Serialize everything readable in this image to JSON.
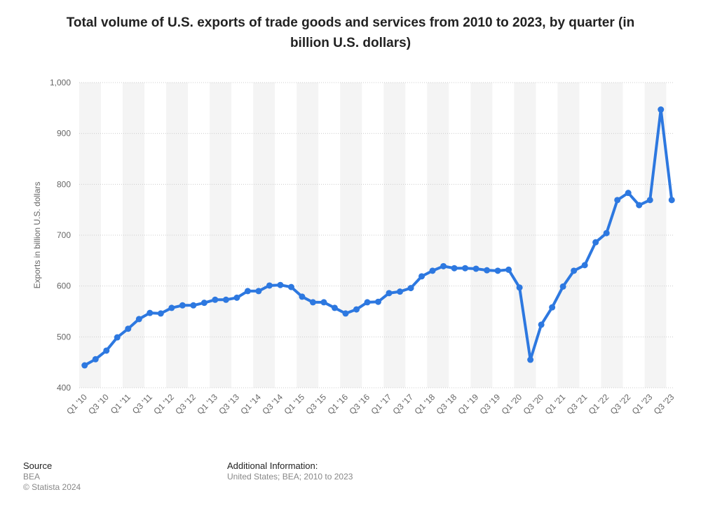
{
  "chart_data": {
    "type": "line",
    "title": "Total volume of U.S. exports of trade goods and services from 2010 to 2023, by quarter (in billion U.S. dollars)",
    "y_label": "Exports in billion U.S. dollars",
    "categories": [
      "Q1 '10",
      null,
      "Q3 '10",
      null,
      "Q1 '11",
      null,
      "Q3 '11",
      null,
      "Q1 '12",
      null,
      "Q3 '12",
      null,
      "Q1 '13",
      null,
      "Q3 '13",
      null,
      "Q1 '14",
      null,
      "Q3 '14",
      null,
      "Q1 '15",
      null,
      "Q3 '15",
      null,
      "Q1 '16",
      null,
      "Q3 '16",
      null,
      "Q1 '17",
      null,
      "Q3 '17",
      null,
      "Q1 '18",
      null,
      "Q3 '18",
      null,
      "Q1 '19",
      null,
      "Q3 '19",
      null,
      "Q1 '20",
      null,
      "Q3 '20",
      null,
      "Q1 '21",
      null,
      "Q3 '21",
      null,
      "Q1 '22",
      null,
      "Q3 '22",
      null,
      "Q1 '23",
      null,
      "Q3 '23"
    ],
    "series": [
      {
        "color": "#2d78e0",
        "values": [
          444,
          456,
          473,
          499,
          516,
          535,
          547,
          546,
          557,
          562,
          562,
          567,
          573,
          573,
          577,
          590,
          590,
          601,
          602,
          598,
          579,
          568,
          568,
          557,
          546,
          554,
          568,
          569,
          586,
          589,
          596,
          619,
          630,
          639,
          635,
          635,
          634,
          631,
          630,
          632,
          597,
          455,
          524,
          558,
          599,
          630,
          641,
          686,
          704,
          769,
          783,
          759,
          769,
          947,
          769
        ]
      }
    ],
    "ylim": [
      400,
      1000
    ],
    "yticks": [
      400,
      500,
      600,
      700,
      800,
      900,
      {
        "value": 1000,
        "label": "1,000"
      }
    ],
    "grid": true
  },
  "footer": {
    "source_title": "Source",
    "source": "BEA",
    "copyright": "© Statista 2024",
    "info_title": "Additional Information:",
    "info": "United States; BEA; 2010 to 2023"
  }
}
